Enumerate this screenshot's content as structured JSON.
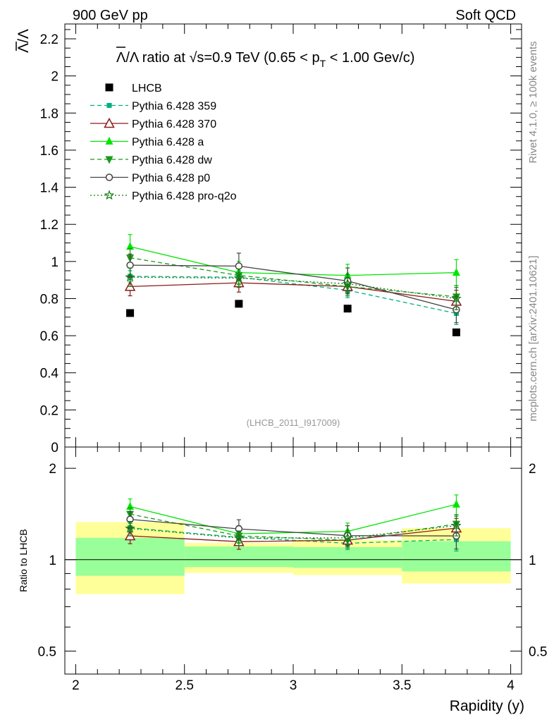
{
  "header": {
    "left": "900 GeV pp",
    "right": "Soft QCD"
  },
  "side_labels": {
    "rivet": "Rivet 4.1.0, ≥ 100k events",
    "mcplots": "mcplots.cern.ch [arXiv:2401.10621]"
  },
  "chart_data": {
    "type": "scatter",
    "title": "Λ̅/Λ ratio at √s=0.9 TeV (0.65 < pT < 1.00 Gev/c)",
    "title_parts": {
      "prefix": "/Λ ratio at ",
      "sqrt": "√",
      "energy": "s=0.9 TeV (0.65 < p",
      "sub": "T",
      "suffix": " < 1.00 Gev/c)",
      "lambda": "Λ"
    },
    "analysis_label": "(LHCB_2011_I917009)",
    "xlabel": "Rapidity (y)",
    "ylabel_main": "Λ/Λ",
    "ylabel_ratio": "Ratio to LHCB",
    "xlim": [
      1.95,
      4.05
    ],
    "ylim_main": [
      0,
      2.28
    ],
    "ylim_ratio": [
      0.42,
      2.35
    ],
    "x_ticks": [
      2,
      2.5,
      3,
      3.5,
      4
    ],
    "x_tick_labels": [
      "2",
      "2.5",
      "3",
      "3.5",
      "4"
    ],
    "y_ticks_main": [
      0,
      0.2,
      0.4,
      0.6,
      0.8,
      1,
      1.2,
      1.4,
      1.6,
      1.8,
      2,
      2.2
    ],
    "y_tick_labels_main": [
      "0",
      "0.2",
      "0.4",
      "0.6",
      "0.8",
      "1",
      "1.2",
      "1.4",
      "1.6",
      "1.8",
      "2",
      "2.2"
    ],
    "y_ticks_ratio": [
      0.5,
      1,
      2
    ],
    "y_tick_labels_ratio": [
      "0.5",
      "1",
      "2"
    ],
    "bin_edges": [
      2,
      2.5,
      3,
      3.5,
      4
    ],
    "x": [
      2.25,
      2.75,
      3.25,
      3.75
    ],
    "data": {
      "name": "LHCB",
      "values": [
        0.722,
        0.772,
        0.746,
        0.618
      ]
    },
    "bands": {
      "inner": [
        [
          0.885,
          1.18
        ],
        [
          0.945,
          1.105
        ],
        [
          0.94,
          1.1
        ],
        [
          0.915,
          1.15
        ]
      ],
      "outer": [
        [
          0.77,
          1.33
        ],
        [
          0.905,
          1.135
        ],
        [
          0.89,
          1.16
        ],
        [
          0.835,
          1.27
        ]
      ]
    },
    "series": [
      {
        "name": "Pythia 6.428 359",
        "color": "#00b080",
        "marker": "square",
        "dash": "6,4",
        "values": [
          0.92,
          0.915,
          0.845,
          0.72
        ],
        "errors": [
          0.03,
          0.035,
          0.04,
          0.06
        ]
      },
      {
        "name": "Pythia 6.428 370",
        "color": "#8b1a1a",
        "marker": "triangle-open",
        "dash": "",
        "values": [
          0.865,
          0.885,
          0.865,
          0.785
        ],
        "errors": [
          0.05,
          0.05,
          0.05,
          0.06
        ]
      },
      {
        "name": "Pythia 6.428 a",
        "color": "#00e600",
        "marker": "triangle",
        "dash": "",
        "values": [
          1.08,
          0.94,
          0.925,
          0.94
        ],
        "errors": [
          0.065,
          0.06,
          0.06,
          0.07
        ]
      },
      {
        "name": "Pythia 6.428 dw",
        "color": "#1a9a1a",
        "marker": "triangle-down",
        "dash": "6,4",
        "values": [
          1.02,
          0.925,
          0.865,
          0.81
        ],
        "errors": [
          0.05,
          0.05,
          0.05,
          0.06
        ]
      },
      {
        "name": "Pythia 6.428 p0",
        "color": "#444444",
        "marker": "circle-open",
        "dash": "",
        "values": [
          0.98,
          0.975,
          0.895,
          0.74
        ],
        "errors": [
          0.06,
          0.07,
          0.07,
          0.07
        ]
      },
      {
        "name": "Pythia 6.428 pro-q2o",
        "color": "#157a15",
        "marker": "star",
        "dash": "2,3",
        "values": [
          0.915,
          0.91,
          0.88,
          0.8
        ],
        "errors": [
          0.05,
          0.05,
          0.05,
          0.06
        ]
      }
    ]
  }
}
